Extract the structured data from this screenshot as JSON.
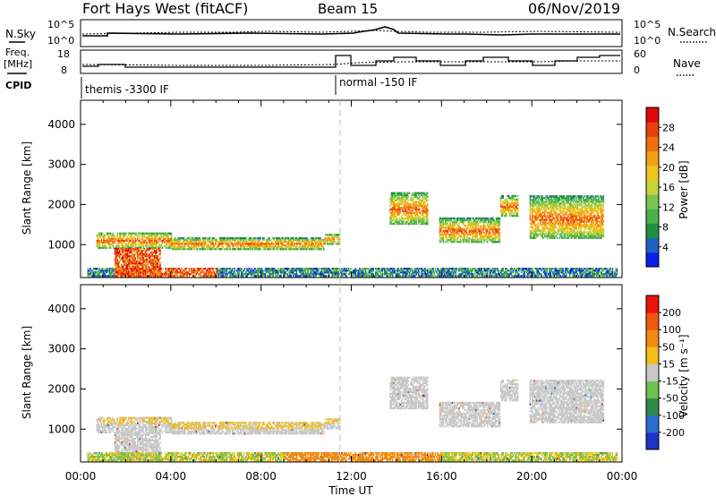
{
  "header": {
    "title": "Fort Hays West (fitACF)",
    "beam": "Beam 15",
    "date": "06/Nov/2019"
  },
  "top_panels": {
    "nsky_label": "N.Sky",
    "nsearch_label": "N.Search",
    "freq_label_line1": "Freq.",
    "freq_label_line2": "[MHz]",
    "nave_label": "Nave",
    "cpid_label": "CPID",
    "left_ticks_top": [
      "10^5",
      "10^0"
    ],
    "right_ticks_top": [
      "10^5",
      "10^0"
    ],
    "freq_ticks": [
      "18",
      "8"
    ],
    "nave_ticks": [
      "60",
      "0"
    ],
    "cpid_segments": [
      "themis -3300 IF",
      "normal -150 IF"
    ]
  },
  "chart_data": [
    {
      "type": "heatmap",
      "name": "power",
      "ylabel": "Slant Range [km]",
      "yticks": [
        "4000",
        "3000",
        "2000",
        "1000"
      ],
      "ylim": [
        180,
        4600
      ],
      "xlim": [
        0,
        24
      ],
      "colorbar_label": "Power [dB]",
      "colorbar_ticks": [
        "28",
        "24",
        "20",
        "16",
        "12",
        "8",
        "4"
      ],
      "colorbar_colors": [
        "#0a1fe8",
        "#1e62c8",
        "#1f9040",
        "#4bb04b",
        "#79c450",
        "#c6d23a",
        "#f0c419",
        "#f5a014",
        "#f07010",
        "#e8400c",
        "#e00a0a"
      ],
      "echo_bands": [
        {
          "x0": 0.7,
          "x1": 4.0,
          "r0": 900,
          "r1": 1300
        },
        {
          "x0": 1.5,
          "x1": 3.5,
          "r0": 200,
          "r1": 900
        },
        {
          "x0": 4.0,
          "x1": 10.8,
          "r0": 870,
          "r1": 1150
        },
        {
          "x0": 10.8,
          "x1": 11.5,
          "r0": 1000,
          "r1": 1250
        },
        {
          "x0": 13.7,
          "x1": 15.4,
          "r0": 1500,
          "r1": 2300
        },
        {
          "x0": 15.9,
          "x1": 18.6,
          "r0": 1050,
          "r1": 1650
        },
        {
          "x0": 18.6,
          "x1": 19.4,
          "r0": 1700,
          "r1": 2200
        },
        {
          "x0": 19.9,
          "x1": 23.2,
          "r0": 1150,
          "r1": 2200
        },
        {
          "x0": 0.3,
          "x1": 23.8,
          "r0": 200,
          "r1": 420
        }
      ]
    },
    {
      "type": "heatmap",
      "name": "velocity",
      "ylabel": "Slant Range [km]",
      "yticks": [
        "4000",
        "3000",
        "2000",
        "1000"
      ],
      "ylim": [
        180,
        4600
      ],
      "xlim": [
        0,
        24
      ],
      "xticks": [
        "00:00",
        "04:00",
        "08:00",
        "12:00",
        "16:00",
        "20:00",
        "00:00"
      ],
      "xlabel": "Time UT",
      "colorbar_label": "Velocity [m s⁻¹]",
      "colorbar_ticks": [
        "200",
        "100",
        "50",
        "15",
        "-15",
        "-50",
        "-100",
        "-200"
      ],
      "colorbar_colors": [
        "#1e32c8",
        "#2a6fcf",
        "#2f8a4a",
        "#6cc24a",
        "#c8c8c8",
        "#f2bf19",
        "#f08a10",
        "#f0580c",
        "#e8140c"
      ]
    }
  ],
  "annotations": {
    "dashed_time_hour": 11.5
  }
}
